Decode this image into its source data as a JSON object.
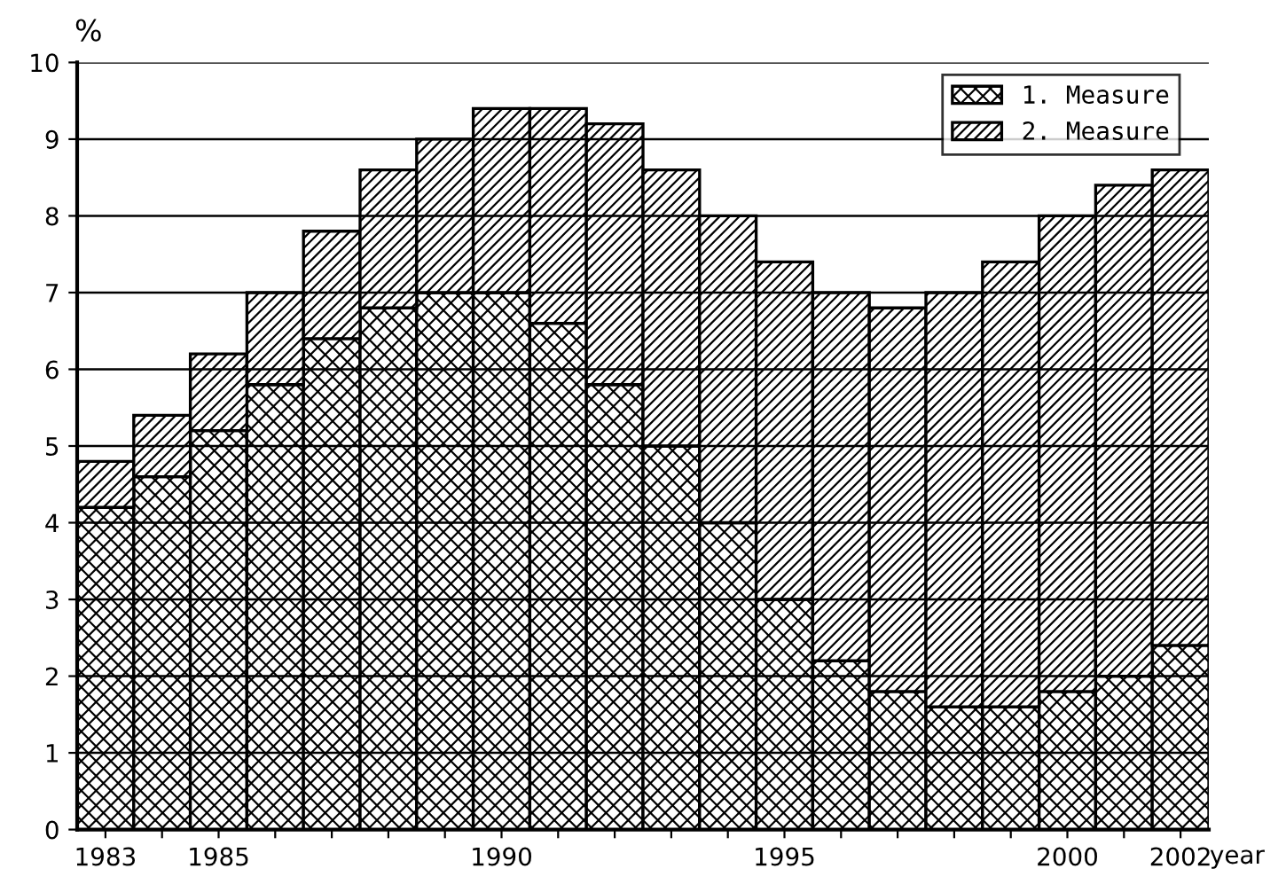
{
  "chart_data": {
    "type": "bar",
    "stacked": true,
    "ylabel": "%",
    "xlabel": "year",
    "categories": [
      "1983",
      null,
      "1985",
      null,
      null,
      null,
      null,
      "1990",
      null,
      null,
      null,
      null,
      "1995",
      null,
      null,
      null,
      null,
      "2000",
      null,
      "2002"
    ],
    "series": [
      {
        "name": "1. Measure",
        "color": "#000000",
        "values": [
          4.2,
          4.6,
          5.2,
          5.8,
          6.4,
          6.8,
          7.0,
          7.0,
          6.6,
          5.8,
          5.0,
          4.0,
          3.0,
          2.2,
          1.8,
          1.6,
          1.6,
          1.8,
          2.0,
          2.4
        ]
      },
      {
        "name": "2. Measure",
        "color": "#000000",
        "values": [
          0.6,
          0.8,
          1.0,
          1.2,
          1.4,
          1.8,
          2.0,
          2.4,
          2.8,
          3.4,
          3.6,
          4.0,
          4.4,
          4.8,
          5.0,
          5.4,
          5.8,
          6.2,
          6.4,
          6.2
        ]
      }
    ],
    "ylim": [
      0,
      10
    ],
    "yticks": [
      0,
      1,
      2,
      3,
      4,
      5,
      6,
      7,
      8,
      9,
      10
    ],
    "grid": "y",
    "legend": "top right"
  }
}
